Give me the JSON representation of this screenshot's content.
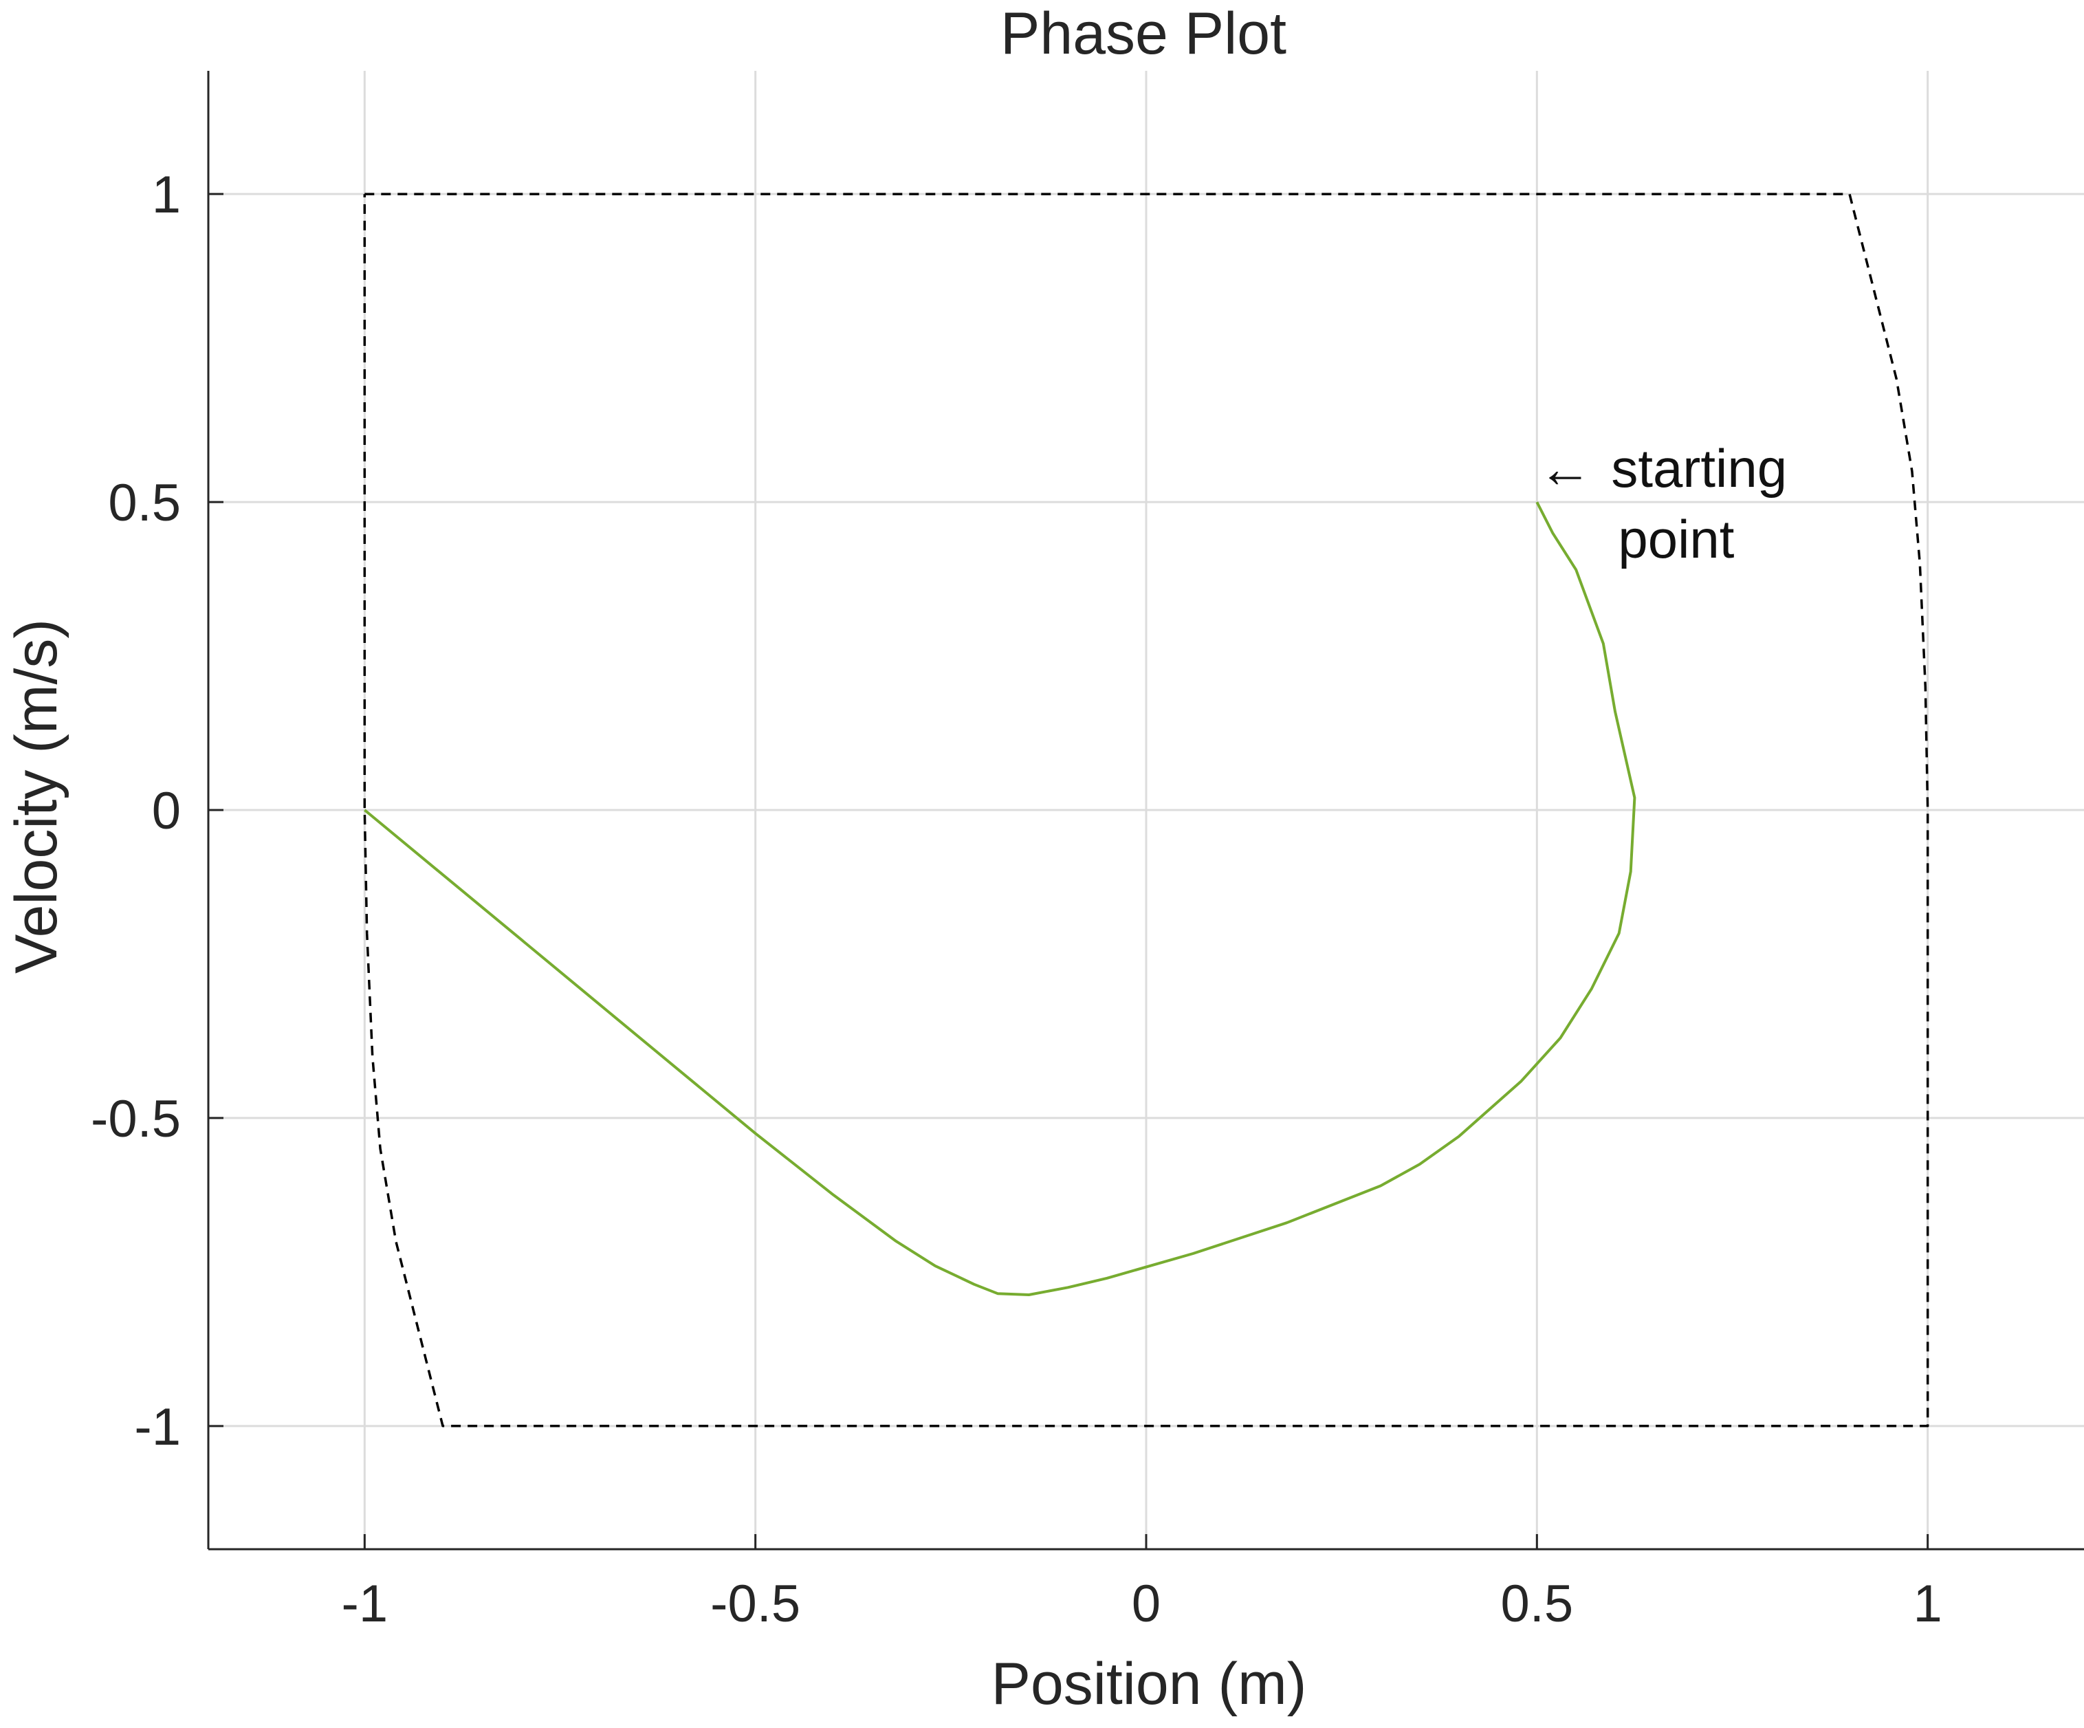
{
  "chart_data": {
    "type": "line",
    "title": "Phase Plot",
    "xlabel": "Position (m)",
    "ylabel": "Velocity (m/s)",
    "xlim": [
      -1.2,
      1.2
    ],
    "ylim": [
      -1.2,
      1.2
    ],
    "grid": true,
    "xticks": [
      -1,
      -0.5,
      0,
      0.5,
      1
    ],
    "yticks": [
      -1,
      -0.5,
      0,
      0.5,
      1
    ],
    "xtick_labels": [
      "-1",
      "-0.5",
      "0",
      "0.5",
      "1"
    ],
    "ytick_labels": [
      "-1",
      "-0.5",
      "0",
      "0.5",
      "1"
    ],
    "annotation": {
      "arrow": "←",
      "line1": "starting",
      "line2": "point",
      "points_to": [
        0.5,
        0.5
      ]
    },
    "colors": {
      "trajectory": "#77ac30",
      "boundary": "#000000",
      "grid": "#dcdcdc",
      "axis": "#262626"
    },
    "series": [
      {
        "style": "solid",
        "x": [
          0.5,
          0.52,
          0.55,
          0.585,
          0.6,
          0.625,
          0.62,
          0.605,
          0.57,
          0.53,
          0.48,
          0.4,
          0.35,
          0.3,
          0.18,
          0.06,
          -0.05,
          -0.1,
          -0.15,
          -0.19,
          -0.22,
          -0.27,
          -0.32,
          -0.4,
          -0.5,
          -0.6,
          -0.7,
          -0.8,
          -0.9,
          -1.0
        ],
        "y": [
          0.5,
          0.45,
          0.39,
          0.27,
          0.16,
          0.02,
          -0.1,
          -0.2,
          -0.29,
          -0.37,
          -0.44,
          -0.53,
          -0.575,
          -0.61,
          -0.67,
          -0.72,
          -0.76,
          -0.775,
          -0.787,
          -0.785,
          -0.77,
          -0.74,
          -0.7,
          -0.625,
          -0.525,
          -0.42,
          -0.315,
          -0.21,
          -0.105,
          0.0
        ]
      },
      {
        "style": "dashed",
        "x": [
          -1.0,
          0.9,
          0.93,
          0.96,
          0.98,
          0.99,
          0.997,
          1.0,
          1.0,
          -0.9,
          -0.93,
          -0.96,
          -0.98,
          -0.99,
          -0.997,
          -1.0,
          -1.0
        ],
        "y": [
          1.0,
          1.0,
          0.85,
          0.7,
          0.55,
          0.4,
          0.2,
          0.0,
          -1.0,
          -1.0,
          -0.85,
          -0.7,
          -0.55,
          -0.4,
          -0.2,
          0.0,
          1.0
        ]
      }
    ]
  }
}
